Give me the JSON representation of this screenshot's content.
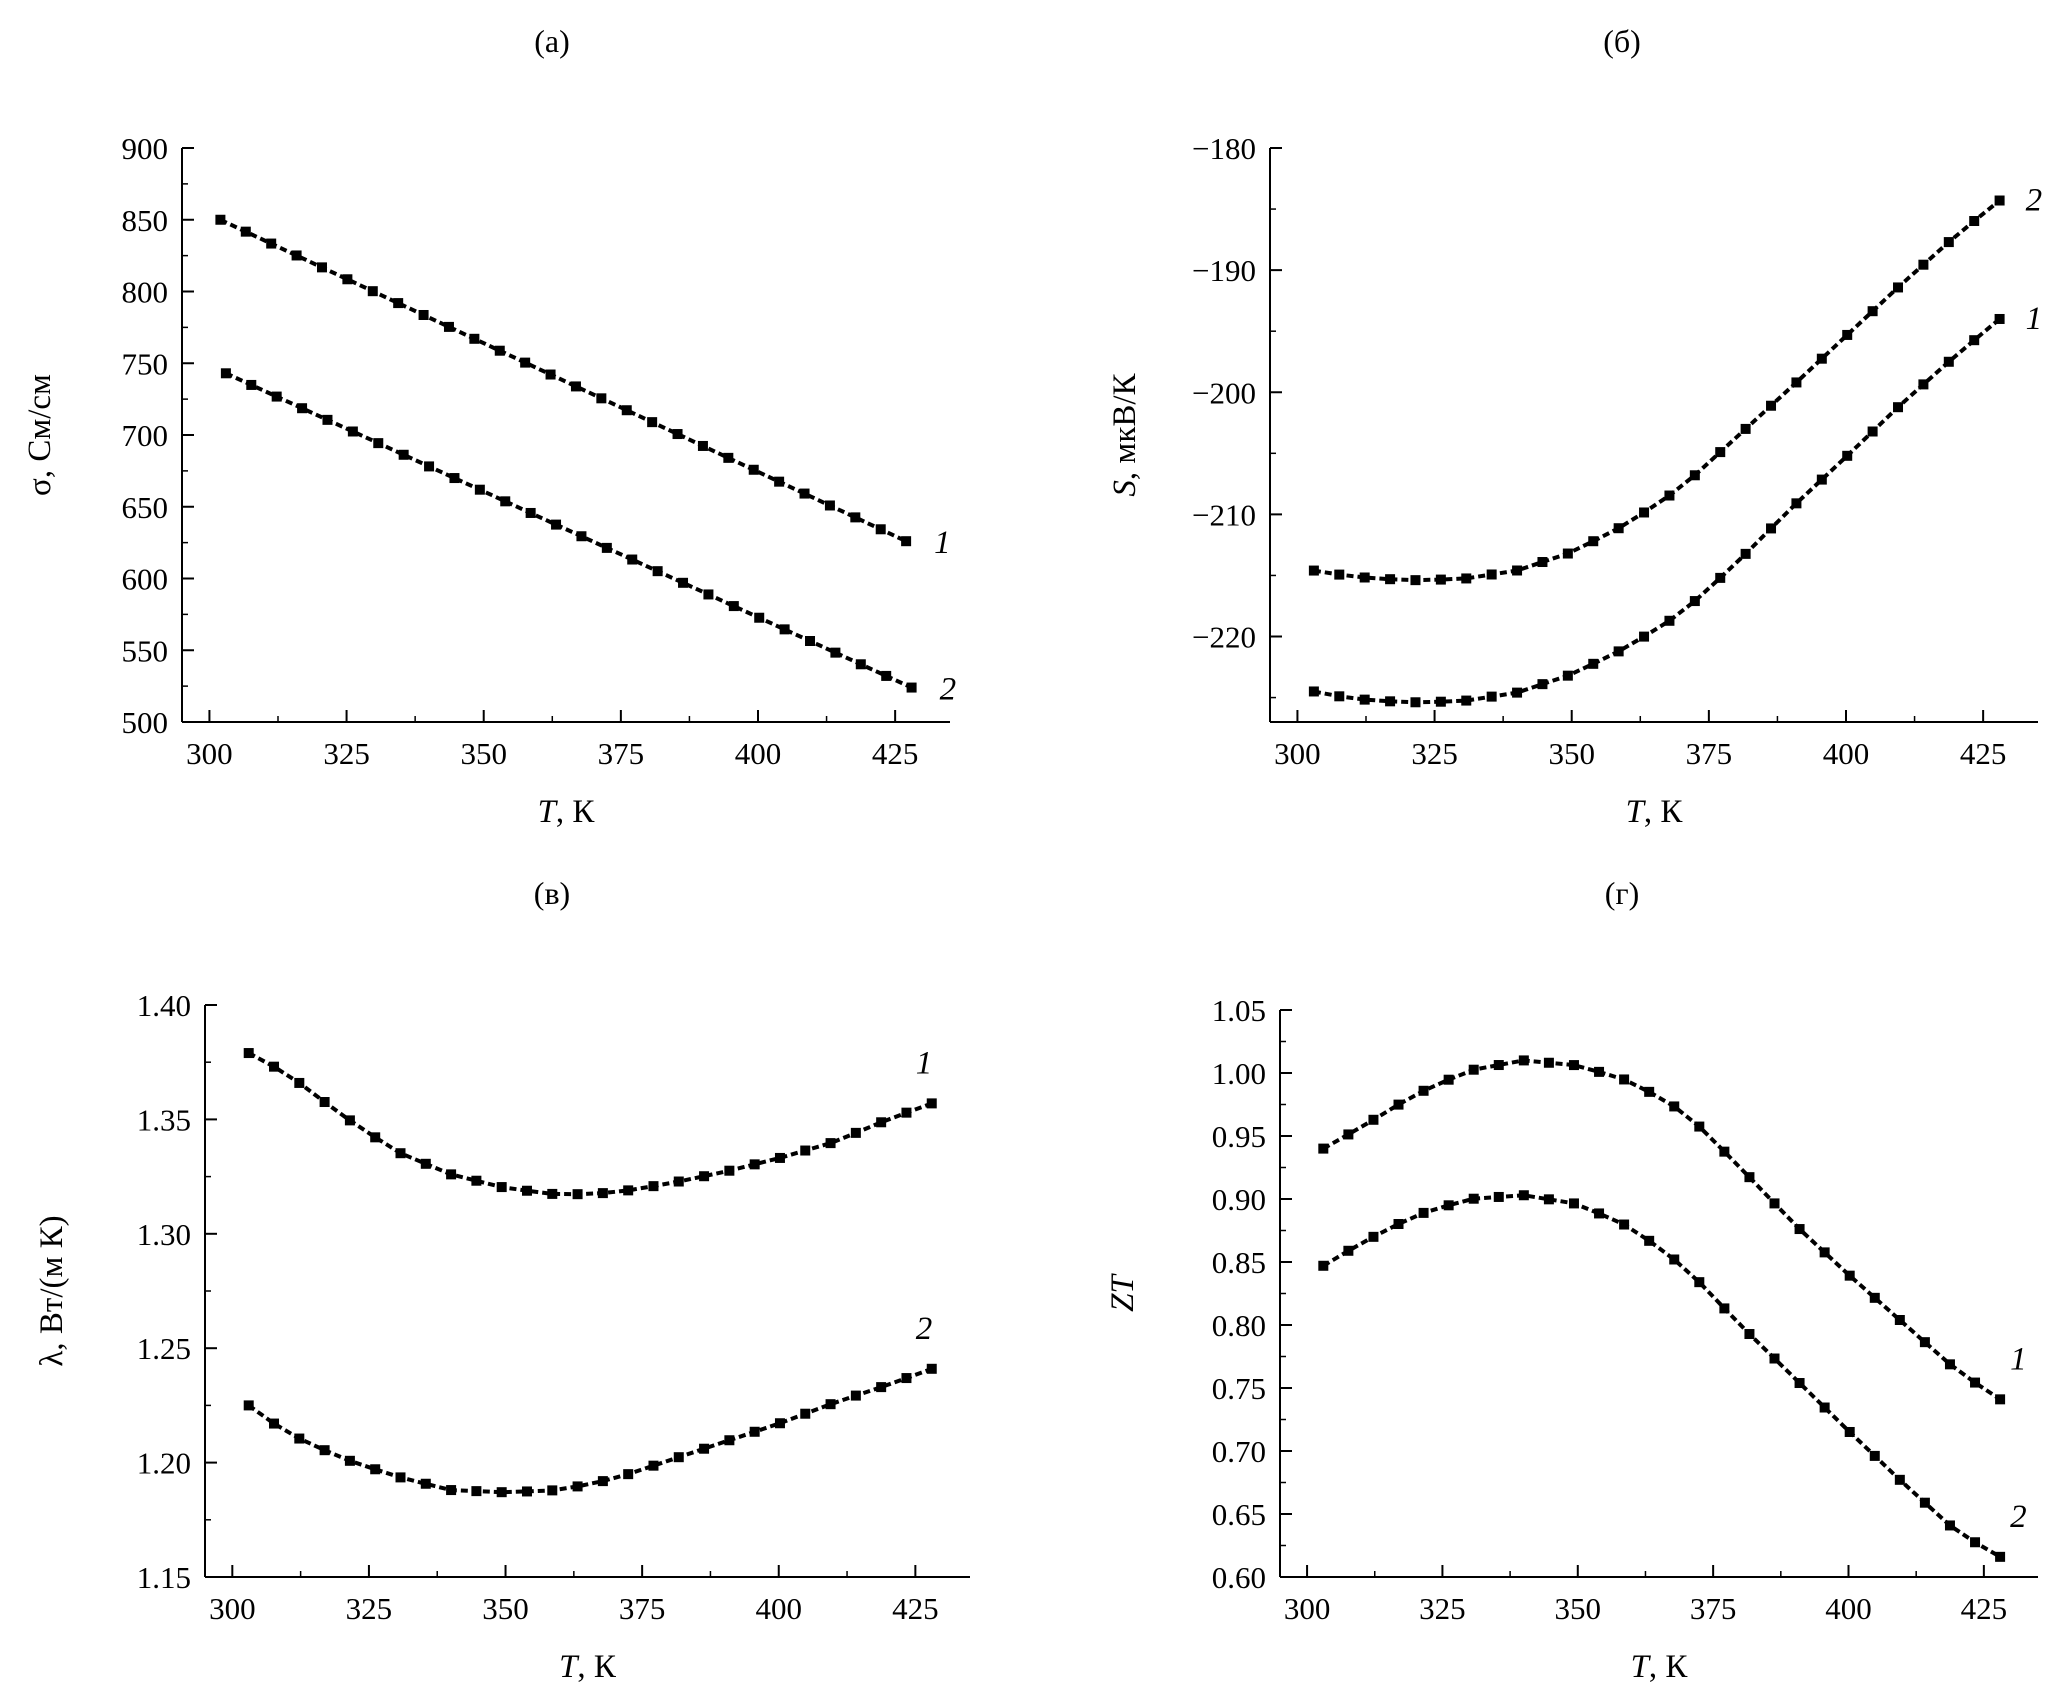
{
  "chart_data": [
    {
      "type": "line",
      "panel": "(а)",
      "xlabel_var": "T",
      "xlabel_unit": ", К",
      "ylabel_var": "σ",
      "ylabel_unit": ", См/см",
      "xlim": [
        295,
        435
      ],
      "ylim": [
        500,
        900
      ],
      "xticks": [
        "300",
        "325",
        "350",
        "375",
        "400",
        "425"
      ],
      "yticks": [
        "500",
        "550",
        "600",
        "650",
        "700",
        "750",
        "800",
        "850",
        "900"
      ],
      "series": [
        {
          "name": "1",
          "x": [
            302,
            427
          ],
          "values": [
            850,
            626
          ],
          "endpoints_only": true
        },
        {
          "name": "2",
          "x": [
            303,
            428
          ],
          "values": [
            743,
            524
          ],
          "endpoints_only": true
        }
      ]
    },
    {
      "type": "line",
      "panel": "(б)",
      "xlabel_var": "T",
      "xlabel_unit": ", К",
      "ylabel_var": "S",
      "ylabel_unit": ", мкВ/К",
      "xlim": [
        295,
        435
      ],
      "ylim": [
        -227,
        -180
      ],
      "xticks": [
        "300",
        "325",
        "350",
        "375",
        "400",
        "425"
      ],
      "yticks": [
        "−220",
        "−210",
        "−200",
        "−190",
        "−180"
      ],
      "series": [
        {
          "name": "1",
          "x": [
            303,
            310,
            320,
            330,
            340,
            350,
            360,
            370,
            380,
            390,
            400,
            410,
            420,
            428
          ],
          "values": [
            -224.5,
            -225.1,
            -225.4,
            -225.3,
            -224.6,
            -223.1,
            -220.9,
            -218.1,
            -214.0,
            -209.5,
            -205.3,
            -201.0,
            -197.0,
            -194.0
          ]
        },
        {
          "name": "2",
          "x": [
            303,
            310,
            320,
            330,
            340,
            350,
            360,
            370,
            380,
            390,
            400,
            410,
            420,
            428
          ],
          "values": [
            -214.6,
            -215.1,
            -215.4,
            -215.3,
            -214.6,
            -213.1,
            -210.8,
            -207.8,
            -203.7,
            -199.6,
            -195.4,
            -191.2,
            -187.2,
            -184.3
          ]
        }
      ]
    },
    {
      "type": "line",
      "panel": "(в)",
      "xlabel_var": "T",
      "xlabel_unit": ", К",
      "ylabel_var": "λ",
      "ylabel_unit": ", Вт/(м К)",
      "xlim": [
        295,
        435
      ],
      "ylim": [
        1.15,
        1.4
      ],
      "xticks": [
        "300",
        "325",
        "350",
        "375",
        "400",
        "425"
      ],
      "yticks": [
        "1.15",
        "1.20",
        "1.25",
        "1.30",
        "1.35",
        "1.40"
      ],
      "series": [
        {
          "name": "1",
          "x": [
            303,
            310,
            320,
            330,
            340,
            350,
            360,
            370,
            380,
            390,
            400,
            410,
            420,
            428
          ],
          "values": [
            1.379,
            1.37,
            1.352,
            1.336,
            1.326,
            1.32,
            1.317,
            1.318,
            1.322,
            1.327,
            1.333,
            1.34,
            1.35,
            1.357
          ]
        },
        {
          "name": "2",
          "x": [
            303,
            310,
            320,
            330,
            340,
            350,
            360,
            370,
            380,
            390,
            400,
            410,
            420,
            428
          ],
          "values": [
            1.225,
            1.213,
            1.202,
            1.194,
            1.188,
            1.187,
            1.188,
            1.193,
            1.201,
            1.209,
            1.217,
            1.226,
            1.234,
            1.241
          ]
        }
      ]
    },
    {
      "type": "line",
      "panel": "(г)",
      "xlabel_var": "T",
      "xlabel_unit": ", К",
      "ylabel_var": "ZT",
      "ylabel_unit": "",
      "xlim": [
        295,
        435
      ],
      "ylim": [
        0.6,
        1.05
      ],
      "xticks": [
        "300",
        "325",
        "350",
        "375",
        "400",
        "425"
      ],
      "yticks": [
        "0.60",
        "0.65",
        "0.70",
        "0.75",
        "0.80",
        "0.85",
        "0.90",
        "0.95",
        "1.00",
        "1.05"
      ],
      "series": [
        {
          "name": "1",
          "x": [
            303,
            310,
            320,
            330,
            340,
            350,
            360,
            370,
            380,
            390,
            400,
            410,
            420,
            428
          ],
          "values": [
            0.94,
            0.957,
            0.983,
            1.002,
            1.01,
            1.006,
            0.993,
            0.968,
            0.925,
            0.88,
            0.84,
            0.802,
            0.764,
            0.741
          ]
        },
        {
          "name": "2",
          "x": [
            303,
            310,
            320,
            330,
            340,
            350,
            360,
            370,
            380,
            390,
            400,
            410,
            420,
            428
          ],
          "values": [
            0.847,
            0.865,
            0.887,
            0.9,
            0.903,
            0.896,
            0.877,
            0.845,
            0.8,
            0.758,
            0.716,
            0.675,
            0.636,
            0.616
          ]
        }
      ]
    }
  ]
}
